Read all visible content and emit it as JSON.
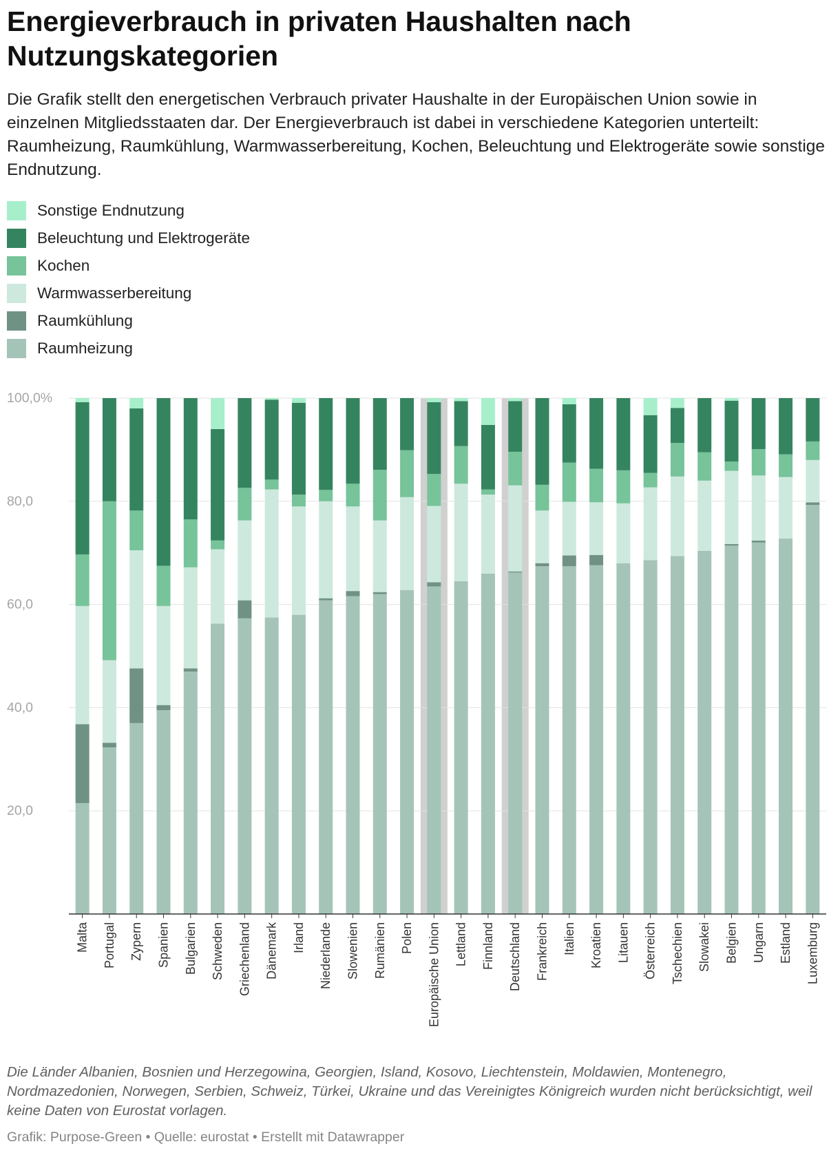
{
  "header": {
    "title": "Energieverbrauch in privaten Haushalten nach Nutzungskategorien",
    "description": "Die Grafik stellt den energetischen Verbrauch privater Haushalte in der Europäischen Union sowie in einzelnen Mitgliedsstaaten dar. Der Energieverbrauch ist dabei in verschiedene Kategorien unterteilt: Raumheizung, Raumkühlung, Warmwasserbereitung, Kochen, Beleuchtung und Elektrogeräte sowie sonstige Endnutzung."
  },
  "legend": {
    "items": [
      {
        "label": "Sonstige Endnutzung",
        "color": "#a7efcb"
      },
      {
        "label": "Beleuchtung und Elektrogeräte",
        "color": "#358460"
      },
      {
        "label": "Kochen",
        "color": "#77c39a"
      },
      {
        "label": "Warmwasserbereitung",
        "color": "#cde9dd"
      },
      {
        "label": "Raumkühlung",
        "color": "#6f9284"
      },
      {
        "label": "Raumheizung",
        "color": "#a5c4b8"
      }
    ]
  },
  "chart_data": {
    "type": "bar",
    "stacked": true,
    "ylim": [
      0,
      100
    ],
    "yticks": [
      20,
      40,
      60,
      80,
      100
    ],
    "ytick_labels": [
      "20,0",
      "40,0",
      "60,0",
      "80,0",
      "100,0%"
    ],
    "highlighted": [
      "Europäische Union",
      "Deutschland"
    ],
    "highlight_color": "#d0d0d0",
    "categories": [
      "Malta",
      "Portugal",
      "Zypern",
      "Spanien",
      "Bulgarien",
      "Schweden",
      "Griechenland",
      "Dänemark",
      "Irland",
      "Niederlande",
      "Slowenien",
      "Rumänien",
      "Polen",
      "Europäische Union",
      "Lettland",
      "Finnland",
      "Deutschland",
      "Frankreich",
      "Italien",
      "Kroatien",
      "Litauen",
      "Österreich",
      "Tschechien",
      "Slowakei",
      "Belgien",
      "Ungarn",
      "Estland",
      "Luxemburg"
    ],
    "series": [
      {
        "name": "Raumheizung",
        "color": "#a5c4b8",
        "values": [
          21.5,
          32.3,
          37.0,
          39.5,
          47.0,
          56.3,
          57.3,
          57.5,
          58.0,
          60.8,
          61.6,
          62.0,
          62.8,
          63.5,
          64.5,
          65.8,
          66.2,
          67.4,
          67.4,
          67.6,
          68.0,
          68.6,
          69.4,
          70.2,
          71.4,
          72.0,
          72.8,
          79.3
        ]
      },
      {
        "name": "Raumkühlung",
        "color": "#6f9284",
        "values": [
          15.3,
          0.9,
          10.6,
          1.0,
          0.6,
          0.0,
          3.5,
          0.0,
          0.0,
          0.4,
          1.0,
          0.4,
          0.0,
          0.8,
          0.0,
          0.1,
          0.2,
          0.6,
          2.1,
          2.0,
          0.0,
          0.0,
          0.0,
          0.1,
          0.3,
          0.4,
          0.0,
          0.5
        ]
      },
      {
        "name": "Warmwasserbereitung",
        "color": "#cde9dd",
        "values": [
          22.9,
          16.0,
          22.9,
          19.2,
          19.6,
          14.4,
          15.5,
          24.8,
          21.0,
          18.8,
          16.4,
          13.9,
          18.0,
          14.8,
          18.9,
          15.4,
          16.7,
          10.2,
          10.4,
          10.2,
          11.6,
          14.1,
          15.4,
          13.7,
          14.2,
          12.6,
          11.9,
          8.2
        ]
      },
      {
        "name": "Kochen",
        "color": "#77c39a",
        "values": [
          10.0,
          30.8,
          7.7,
          7.8,
          9.3,
          1.7,
          6.3,
          1.9,
          2.3,
          2.2,
          4.4,
          9.8,
          9.1,
          6.2,
          7.3,
          1.0,
          6.5,
          5.0,
          7.6,
          6.5,
          6.4,
          2.8,
          6.5,
          5.5,
          1.8,
          5.1,
          4.4,
          3.6
        ]
      },
      {
        "name": "Beleuchtung und Elektrogeräte",
        "color": "#358460",
        "values": [
          29.5,
          20.0,
          19.8,
          32.5,
          23.5,
          21.6,
          17.4,
          15.5,
          17.8,
          17.8,
          16.6,
          13.9,
          10.1,
          13.9,
          8.7,
          12.5,
          9.8,
          16.8,
          11.3,
          13.7,
          14.0,
          11.2,
          6.8,
          10.5,
          11.8,
          9.9,
          10.9,
          8.4
        ]
      },
      {
        "name": "Sonstige Endnutzung",
        "color": "#a7efcb",
        "values": [
          0.8,
          0.0,
          2.0,
          0.0,
          0.0,
          6.0,
          0.0,
          0.3,
          0.9,
          0.0,
          0.0,
          0.0,
          0.0,
          0.8,
          0.6,
          5.2,
          0.6,
          0.0,
          1.2,
          0.0,
          0.0,
          3.3,
          1.9,
          0.0,
          0.5,
          0.0,
          0.0,
          0.0
        ]
      }
    ]
  },
  "footer": {
    "note": "Die Länder Albanien, Bosnien und Herzegowina, Georgien, Island, Kosovo, Liechtenstein, Moldawien, Montenegro, Nordmazedonien, Norwegen, Serbien, Schweiz, Türkei, Ukraine und das Vereinigtes Königreich wurden nicht berücksichtigt, weil keine Daten von Eurostat vorlagen.",
    "credit": "Grafik: Purpose-Green • Quelle: eurostat • Erstellt mit Datawrapper"
  }
}
